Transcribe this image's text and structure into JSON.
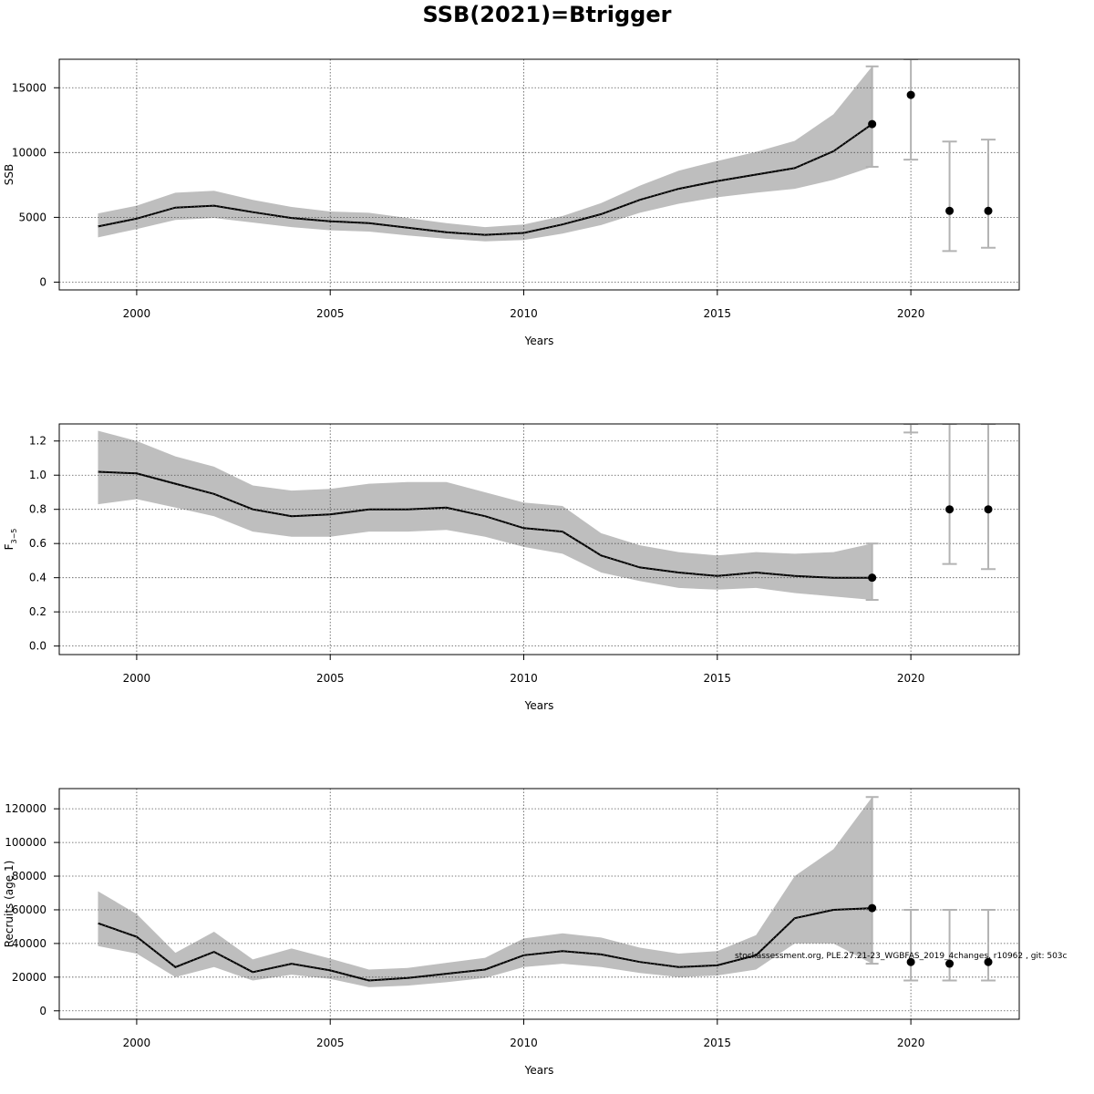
{
  "title": "SSB(2021)=Btrigger",
  "footer": "stockassessment.org, PLE.27.21-23_WGBFAS_2019_4changes, r10962 , git: 503c",
  "colors": {
    "band": "#bebebe",
    "line": "#000000",
    "errorbar": "#b3b3b3",
    "grid": "#555555"
  },
  "chart_data": [
    {
      "type": "line",
      "ylabel": "SSB",
      "xlabel": "Years",
      "xlim": [
        1998,
        2022.8
      ],
      "ylim": [
        -600,
        17200
      ],
      "xticks": [
        2000,
        2005,
        2010,
        2015,
        2020
      ],
      "yticks": [
        0,
        5000,
        10000,
        15000
      ],
      "grid": true,
      "years": [
        1999,
        2000,
        2001,
        2002,
        2003,
        2004,
        2005,
        2006,
        2007,
        2008,
        2009,
        2010,
        2011,
        2012,
        2013,
        2014,
        2015,
        2016,
        2017,
        2018,
        2019
      ],
      "estimate": [
        4300,
        4900,
        5750,
        5900,
        5400,
        4950,
        4700,
        4550,
        4200,
        3850,
        3650,
        3800,
        4450,
        5250,
        6350,
        7200,
        7800,
        8300,
        8800,
        10100,
        12200
      ],
      "lower": [
        3450,
        4100,
        4800,
        4950,
        4600,
        4250,
        4000,
        3900,
        3600,
        3350,
        3150,
        3250,
        3750,
        4400,
        5350,
        6050,
        6550,
        6900,
        7200,
        7900,
        8900
      ],
      "upper": [
        5300,
        5900,
        6900,
        7050,
        6350,
        5800,
        5450,
        5350,
        4950,
        4550,
        4250,
        4450,
        5100,
        6100,
        7450,
        8600,
        9350,
        10050,
        10900,
        12950,
        16650
      ],
      "forecast": [
        {
          "year": 2020,
          "value": 14450,
          "lower": 9450,
          "upper": 17200
        },
        {
          "year": 2021,
          "value": 5500,
          "lower": 2400,
          "upper": 10850
        },
        {
          "year": 2022,
          "value": 5500,
          "lower": 2650,
          "upper": 11000
        }
      ]
    },
    {
      "type": "line",
      "ylabel": "F3-5",
      "ylabel_main": "F",
      "ylabel_sub": "3−5",
      "xlabel": "Years",
      "xlim": [
        1998,
        2022.8
      ],
      "ylim": [
        -0.05,
        1.3
      ],
      "xticks": [
        2000,
        2005,
        2010,
        2015,
        2020
      ],
      "yticks": [
        0.0,
        0.2,
        0.4,
        0.6,
        0.8,
        1.0,
        1.2
      ],
      "ytick_labels": [
        "0.0",
        "0.2",
        "0.4",
        "0.6",
        "0.8",
        "1.0",
        "1.2"
      ],
      "grid": true,
      "years": [
        1999,
        2000,
        2001,
        2002,
        2003,
        2004,
        2005,
        2006,
        2007,
        2008,
        2009,
        2010,
        2011,
        2012,
        2013,
        2014,
        2015,
        2016,
        2017,
        2018,
        2019
      ],
      "estimate": [
        1.02,
        1.01,
        0.95,
        0.89,
        0.8,
        0.76,
        0.77,
        0.8,
        0.8,
        0.81,
        0.76,
        0.69,
        0.67,
        0.53,
        0.46,
        0.43,
        0.41,
        0.43,
        0.41,
        0.4,
        0.4
      ],
      "lower": [
        0.83,
        0.86,
        0.81,
        0.76,
        0.67,
        0.64,
        0.64,
        0.67,
        0.67,
        0.68,
        0.64,
        0.58,
        0.54,
        0.43,
        0.38,
        0.34,
        0.33,
        0.34,
        0.31,
        0.29,
        0.27
      ],
      "upper": [
        1.26,
        1.2,
        1.11,
        1.05,
        0.94,
        0.91,
        0.92,
        0.95,
        0.96,
        0.96,
        0.9,
        0.84,
        0.82,
        0.66,
        0.59,
        0.55,
        0.53,
        0.55,
        0.54,
        0.55,
        0.6
      ],
      "forecast": [
        {
          "year": 2020,
          "value": null,
          "lower": 1.25,
          "upper": 1.3
        },
        {
          "year": 2021,
          "value": 0.8,
          "lower": 0.48,
          "upper": 1.3
        },
        {
          "year": 2022,
          "value": 0.8,
          "lower": 0.45,
          "upper": 1.3
        }
      ]
    },
    {
      "type": "line",
      "ylabel": "Recruits (age 1)",
      "xlabel": "Years",
      "xlim": [
        1998,
        2022.8
      ],
      "ylim": [
        -5000,
        132000
      ],
      "xticks": [
        2000,
        2005,
        2010,
        2015,
        2020
      ],
      "yticks": [
        0,
        20000,
        40000,
        60000,
        80000,
        100000,
        120000
      ],
      "grid": true,
      "years": [
        1999,
        2000,
        2001,
        2002,
        2003,
        2004,
        2005,
        2006,
        2007,
        2008,
        2009,
        2010,
        2011,
        2012,
        2013,
        2014,
        2015,
        2016,
        2017,
        2018,
        2019
      ],
      "estimate": [
        52000,
        44000,
        26000,
        35000,
        23000,
        28000,
        24000,
        18000,
        19500,
        22000,
        24500,
        33000,
        35500,
        33500,
        29000,
        26000,
        27000,
        33000,
        55000,
        60000,
        61000
      ],
      "lower": [
        38500,
        34000,
        20000,
        26000,
        18000,
        21500,
        19000,
        14000,
        15000,
        17000,
        19500,
        26000,
        28000,
        26000,
        22500,
        20000,
        21000,
        24500,
        40000,
        40000,
        28000
      ],
      "upper": [
        71000,
        57500,
        34500,
        47000,
        30500,
        37000,
        31000,
        24500,
        25500,
        28500,
        31500,
        43000,
        46000,
        43500,
        37500,
        34000,
        35500,
        45000,
        80000,
        96000,
        127000
      ],
      "forecast": [
        {
          "year": 2020,
          "value": 29000,
          "lower": 18000,
          "upper": 60000
        },
        {
          "year": 2021,
          "value": 28000,
          "lower": 18000,
          "upper": 60000
        },
        {
          "year": 2022,
          "value": 29000,
          "lower": 18000,
          "upper": 60000
        }
      ]
    }
  ]
}
